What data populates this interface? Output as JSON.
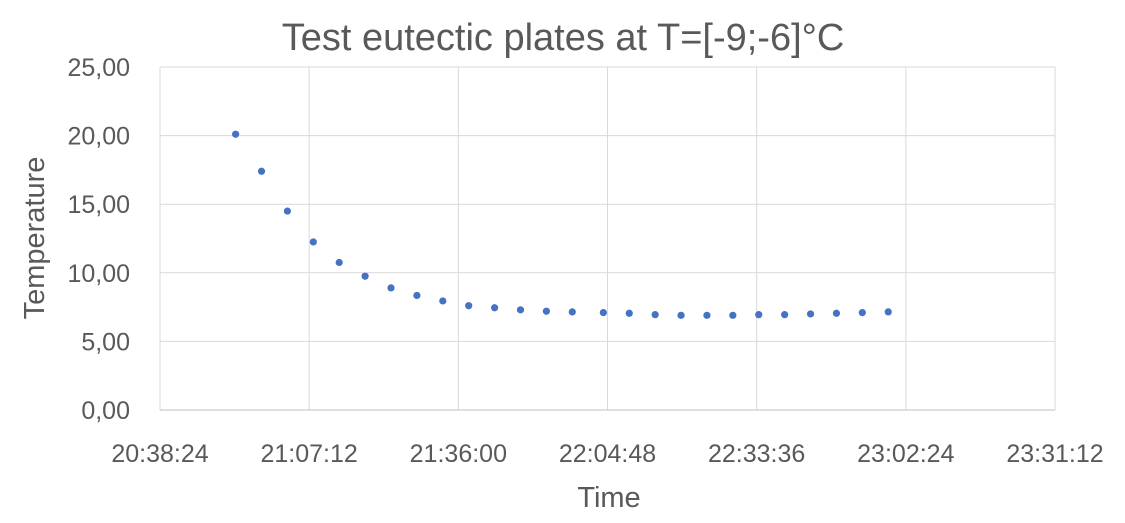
{
  "chart_data": {
    "type": "scatter",
    "title": "Test eutectic plates at T=[-9;-6]°C",
    "xlabel": "Time",
    "ylabel": "Temperature",
    "x_tick_labels": [
      "20:38:24",
      "21:07:12",
      "21:36:00",
      "22:04:48",
      "22:33:36",
      "23:02:24",
      "23:31:12"
    ],
    "y_tick_labels": [
      "0,00",
      "5,00",
      "10,00",
      "15,00",
      "20,00",
      "25,00"
    ],
    "xlim": [
      "20:38:24",
      "23:31:12"
    ],
    "ylim": [
      0,
      25
    ],
    "grid": true,
    "marker_color": "#4472c4",
    "series": [
      {
        "x": [
          "20:53:00",
          "20:58:00",
          "21:03:00",
          "21:08:00",
          "21:13:00",
          "21:18:00",
          "21:23:00",
          "21:28:00",
          "21:33:00",
          "21:38:00",
          "21:43:00",
          "21:48:00",
          "21:53:00",
          "21:58:00",
          "22:04:00",
          "22:09:00",
          "22:14:00",
          "22:19:00",
          "22:24:00",
          "22:29:00",
          "22:34:00",
          "22:39:00",
          "22:44:00",
          "22:49:00",
          "22:54:00",
          "22:59:00"
        ],
        "y": [
          20.1,
          17.4,
          14.5,
          12.25,
          10.75,
          9.75,
          8.9,
          8.35,
          7.95,
          7.6,
          7.45,
          7.3,
          7.2,
          7.15,
          7.1,
          7.05,
          6.95,
          6.9,
          6.9,
          6.9,
          6.95,
          6.95,
          7.0,
          7.05,
          7.1,
          7.15
        ]
      }
    ]
  }
}
